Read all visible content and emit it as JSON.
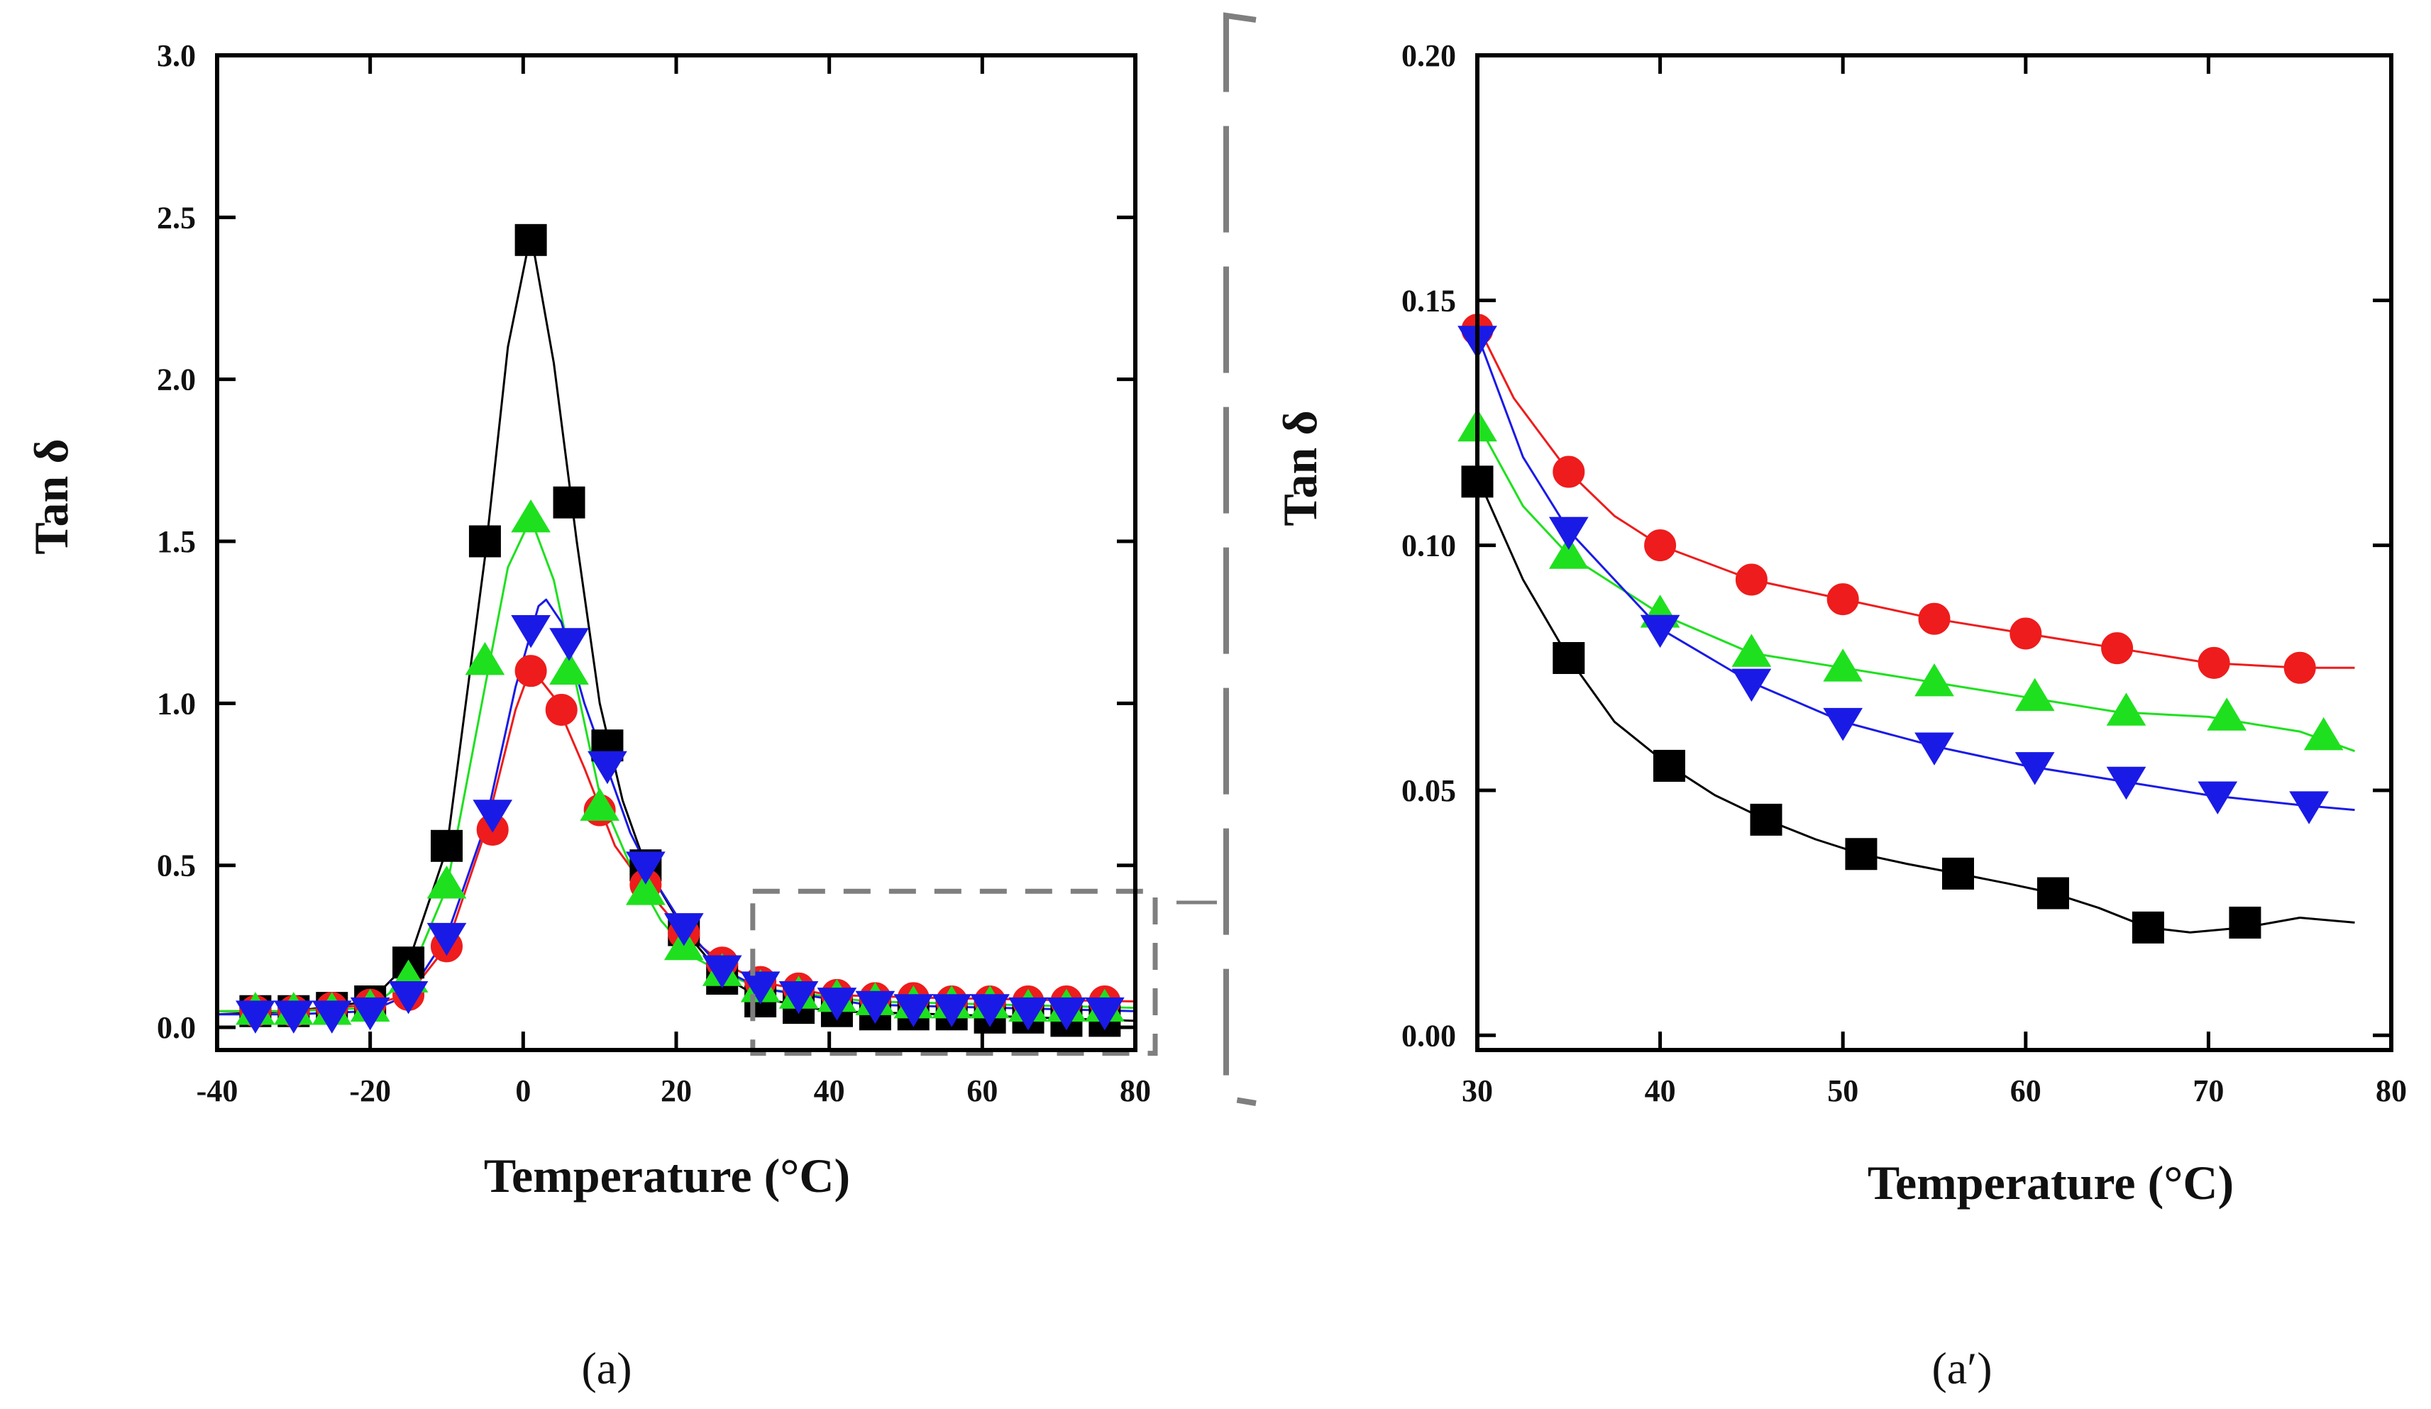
{
  "chart_data": [
    {
      "id": "a",
      "type": "scatter",
      "panel_label": "(a)",
      "xlabel": "Temperature (°C)",
      "ylabel": "Tan δ",
      "xlim": [
        -40,
        80
      ],
      "ylim": [
        -0.07,
        3.0
      ],
      "xticks": [
        -40,
        -20,
        0,
        20,
        40,
        60,
        80
      ],
      "xtick_labels": [
        "-40",
        "-20",
        "0",
        "20",
        "40",
        "60",
        "80"
      ],
      "yticks": [
        0,
        0.5,
        1,
        1.5,
        2,
        2.5,
        3
      ],
      "ytick_labels": [
        "0.0",
        "0.5",
        "1.0",
        "1.5",
        "2.0",
        "2.5",
        "3.0"
      ],
      "series": [
        {
          "name": "black-squares",
          "color": "#000000",
          "marker": "square",
          "x": [
            -35,
            -30,
            -25,
            -20,
            -15,
            -10,
            -5,
            1,
            6,
            11,
            16,
            21,
            26,
            31,
            36,
            41,
            46,
            51,
            56,
            61,
            66,
            71,
            76
          ],
          "y": [
            0.05,
            0.05,
            0.06,
            0.08,
            0.2,
            0.56,
            1.5,
            2.43,
            1.62,
            0.87,
            0.5,
            0.3,
            0.15,
            0.08,
            0.06,
            0.05,
            0.04,
            0.04,
            0.04,
            0.03,
            0.03,
            0.02,
            0.02
          ],
          "curve": [
            [
              -40,
              0.04
            ],
            [
              -30,
              0.05
            ],
            [
              -20,
              0.08
            ],
            [
              -15,
              0.2
            ],
            [
              -10,
              0.55
            ],
            [
              -5,
              1.45
            ],
            [
              -2,
              2.1
            ],
            [
              1,
              2.45
            ],
            [
              4,
              2.05
            ],
            [
              7,
              1.5
            ],
            [
              10,
              1.0
            ],
            [
              13,
              0.7
            ],
            [
              16,
              0.5
            ],
            [
              21,
              0.3
            ],
            [
              26,
              0.16
            ],
            [
              31,
              0.09
            ],
            [
              40,
              0.05
            ],
            [
              55,
              0.04
            ],
            [
              80,
              0.02
            ]
          ]
        },
        {
          "name": "red-circles",
          "color": "#ee1c1c",
          "marker": "circle",
          "x": [
            -35,
            -30,
            -25,
            -20,
            -15,
            -10,
            -4,
            1,
            5,
            10,
            16,
            21,
            26,
            31,
            36,
            41,
            46,
            51,
            56,
            61,
            66,
            71,
            76
          ],
          "y": [
            0.05,
            0.05,
            0.06,
            0.07,
            0.1,
            0.25,
            0.61,
            1.1,
            0.98,
            0.67,
            0.44,
            0.29,
            0.2,
            0.14,
            0.12,
            0.1,
            0.09,
            0.09,
            0.08,
            0.08,
            0.08,
            0.08,
            0.08
          ],
          "curve": [
            [
              -40,
              0.05
            ],
            [
              -30,
              0.05
            ],
            [
              -20,
              0.07
            ],
            [
              -15,
              0.1
            ],
            [
              -10,
              0.25
            ],
            [
              -5,
              0.6
            ],
            [
              -1,
              0.98
            ],
            [
              1,
              1.11
            ],
            [
              4,
              1.02
            ],
            [
              8,
              0.8
            ],
            [
              12,
              0.56
            ],
            [
              16,
              0.43
            ],
            [
              21,
              0.29
            ],
            [
              26,
              0.2
            ],
            [
              31,
              0.14
            ],
            [
              40,
              0.1
            ],
            [
              55,
              0.09
            ],
            [
              80,
              0.08
            ]
          ]
        },
        {
          "name": "green-triangles",
          "color": "#1fe01f",
          "marker": "triangle-up",
          "x": [
            -35,
            -30,
            -25,
            -20,
            -15,
            -10,
            -5,
            1,
            6,
            10,
            16,
            21,
            26,
            31,
            36,
            41,
            46,
            51,
            56,
            61,
            66,
            71,
            76
          ],
          "y": [
            0.05,
            0.05,
            0.05,
            0.06,
            0.15,
            0.44,
            1.13,
            1.57,
            1.1,
            0.68,
            0.42,
            0.25,
            0.17,
            0.12,
            0.1,
            0.09,
            0.08,
            0.07,
            0.07,
            0.07,
            0.06,
            0.06,
            0.06
          ],
          "curve": [
            [
              -40,
              0.05
            ],
            [
              -30,
              0.05
            ],
            [
              -20,
              0.06
            ],
            [
              -15,
              0.15
            ],
            [
              -10,
              0.43
            ],
            [
              -5,
              1.05
            ],
            [
              -2,
              1.42
            ],
            [
              1,
              1.57
            ],
            [
              4,
              1.38
            ],
            [
              7,
              1.05
            ],
            [
              10,
              0.72
            ],
            [
              14,
              0.5
            ],
            [
              18,
              0.33
            ],
            [
              22,
              0.22
            ],
            [
              26,
              0.17
            ],
            [
              31,
              0.12
            ],
            [
              45,
              0.08
            ],
            [
              80,
              0.06
            ]
          ]
        },
        {
          "name": "blue-inverted-triangles",
          "color": "#1a1ae6",
          "marker": "triangle-down",
          "x": [
            -35,
            -30,
            -25,
            -20,
            -15,
            -10,
            -4,
            1,
            6,
            11,
            16,
            21,
            26,
            31,
            36,
            41,
            46,
            51,
            56,
            61,
            66,
            71,
            76
          ],
          "y": [
            0.04,
            0.04,
            0.04,
            0.05,
            0.1,
            0.28,
            0.66,
            1.23,
            1.19,
            0.81,
            0.5,
            0.31,
            0.18,
            0.13,
            0.1,
            0.08,
            0.07,
            0.06,
            0.06,
            0.06,
            0.05,
            0.05,
            0.05
          ],
          "curve": [
            [
              -40,
              0.04
            ],
            [
              -30,
              0.04
            ],
            [
              -20,
              0.05
            ],
            [
              -15,
              0.1
            ],
            [
              -10,
              0.28
            ],
            [
              -5,
              0.62
            ],
            [
              -1,
              1.05
            ],
            [
              2,
              1.3
            ],
            [
              3,
              1.32
            ],
            [
              5,
              1.25
            ],
            [
              8,
              1.0
            ],
            [
              11,
              0.8
            ],
            [
              14,
              0.6
            ],
            [
              17,
              0.46
            ],
            [
              21,
              0.31
            ],
            [
              26,
              0.18
            ],
            [
              31,
              0.12
            ],
            [
              45,
              0.07
            ],
            [
              80,
              0.05
            ]
          ]
        }
      ]
    },
    {
      "id": "a-prime",
      "type": "scatter",
      "panel_label": "(a′)",
      "xlabel": "Temperature (°C)",
      "ylabel": "Tan δ",
      "xlim": [
        30,
        80
      ],
      "ylim": [
        -0.003,
        0.2
      ],
      "xticks": [
        30,
        40,
        50,
        60,
        70,
        80
      ],
      "xtick_labels": [
        "30",
        "40",
        "50",
        "60",
        "70",
        "80"
      ],
      "yticks": [
        0,
        0.05,
        0.1,
        0.15,
        0.2
      ],
      "ytick_labels": [
        "0.00",
        "0.05",
        "0.10",
        "0.15",
        "0.20"
      ],
      "series": [
        {
          "name": "black-squares",
          "color": "#000000",
          "marker": "square",
          "x": [
            30,
            35,
            40.5,
            45.8,
            51,
            56.3,
            61.5,
            66.7,
            72
          ],
          "y": [
            0.113,
            0.077,
            0.055,
            0.044,
            0.037,
            0.033,
            0.029,
            0.022,
            0.023
          ],
          "curve": [
            [
              30,
              0.114
            ],
            [
              32.5,
              0.093
            ],
            [
              35,
              0.077
            ],
            [
              37.5,
              0.064
            ],
            [
              40.5,
              0.055
            ],
            [
              43,
              0.049
            ],
            [
              45.8,
              0.044
            ],
            [
              48.5,
              0.04
            ],
            [
              51,
              0.037
            ],
            [
              53.5,
              0.035
            ],
            [
              56.3,
              0.033
            ],
            [
              59,
              0.031
            ],
            [
              61.5,
              0.029
            ],
            [
              64,
              0.026
            ],
            [
              66.7,
              0.022
            ],
            [
              69,
              0.021
            ],
            [
              72,
              0.022
            ],
            [
              75,
              0.024
            ],
            [
              78,
              0.023
            ]
          ]
        },
        {
          "name": "red-circles",
          "color": "#ee1c1c",
          "marker": "circle",
          "x": [
            30,
            35,
            40,
            45,
            50,
            55,
            60,
            65,
            70.3,
            75
          ],
          "y": [
            0.144,
            0.115,
            0.1,
            0.093,
            0.089,
            0.085,
            0.082,
            0.079,
            0.076,
            0.075
          ],
          "curve": [
            [
              30,
              0.145
            ],
            [
              32,
              0.13
            ],
            [
              35,
              0.115
            ],
            [
              37.5,
              0.106
            ],
            [
              40,
              0.1
            ],
            [
              45,
              0.093
            ],
            [
              50,
              0.089
            ],
            [
              55,
              0.085
            ],
            [
              60,
              0.082
            ],
            [
              65,
              0.079
            ],
            [
              70,
              0.076
            ],
            [
              75,
              0.075
            ],
            [
              78,
              0.075
            ]
          ]
        },
        {
          "name": "green-triangles",
          "color": "#1fe01f",
          "marker": "triangle-up",
          "x": [
            30,
            35,
            40,
            45,
            50,
            55,
            60.5,
            65.5,
            71,
            76.3
          ],
          "y": [
            0.124,
            0.098,
            0.086,
            0.078,
            0.075,
            0.072,
            0.069,
            0.066,
            0.065,
            0.061
          ],
          "curve": [
            [
              30,
              0.125
            ],
            [
              32.5,
              0.108
            ],
            [
              35,
              0.098
            ],
            [
              40,
              0.086
            ],
            [
              45,
              0.078
            ],
            [
              50,
              0.075
            ],
            [
              55,
              0.072
            ],
            [
              60,
              0.069
            ],
            [
              65,
              0.066
            ],
            [
              70,
              0.065
            ],
            [
              75,
              0.062
            ],
            [
              78,
              0.058
            ]
          ]
        },
        {
          "name": "blue-inverted-triangles",
          "color": "#1a1ae6",
          "marker": "triangle-down",
          "x": [
            30,
            35,
            40,
            45,
            50,
            55,
            60.5,
            65.5,
            70.5,
            75.5
          ],
          "y": [
            0.142,
            0.103,
            0.083,
            0.072,
            0.064,
            0.059,
            0.055,
            0.052,
            0.049,
            0.047
          ],
          "curve": [
            [
              30,
              0.143
            ],
            [
              32.5,
              0.118
            ],
            [
              35,
              0.103
            ],
            [
              40,
              0.083
            ],
            [
              45,
              0.072
            ],
            [
              50,
              0.064
            ],
            [
              55,
              0.059
            ],
            [
              60,
              0.055
            ],
            [
              65,
              0.052
            ],
            [
              70,
              0.049
            ],
            [
              75,
              0.047
            ],
            [
              78,
              0.046
            ]
          ]
        }
      ]
    }
  ]
}
